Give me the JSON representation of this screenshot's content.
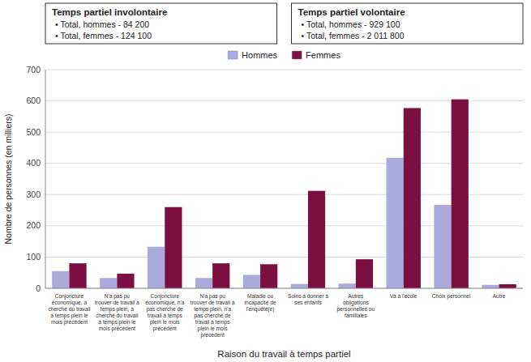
{
  "chart_data": {
    "type": "bar",
    "categories": [
      "Conjoncture\néconomique, a\ncherché du travail\nà temps plein le\nmois précédent",
      "N'a pas pu\ntrouver de travail à\ntemps plein, a\ncherché du travail\nà temps plein le\nmois précédent",
      "Conjoncture\néconomique, n'a\npas cherché de\ntravail à temps\nplein le mois\nprécédent",
      "N'a pas pu\ntrouver de travail à\ntemps plein, n'a\npas cherché de\ntravail à temps\nplein le mois\nprécédent",
      "Maladie ou\nincapacité de\nl'enquêté(e)",
      "Soins à donner à\nses enfants",
      "Autres\nobligations\npersonnelles ou\nfamiliales",
      "Va à l'école",
      "Choix personnel",
      "Autre"
    ],
    "series": [
      {
        "name": "Hommes",
        "color": "#aaaadd",
        "values": [
          55,
          33,
          133,
          33,
          43,
          14,
          15,
          418,
          267,
          11
        ]
      },
      {
        "name": "Femmes",
        "color": "#7b1040",
        "values": [
          80,
          47,
          260,
          80,
          77,
          312,
          93,
          577,
          605,
          13
        ]
      }
    ],
    "xlabel": "Raison du travail à temps partiel",
    "ylabel": "Nombre de personnes (en milliers)",
    "ylim": [
      0,
      700
    ],
    "yticks": [
      0,
      100,
      200,
      300,
      400,
      500,
      600,
      700
    ],
    "grid": true,
    "legend": "top",
    "annotations": [
      {
        "title": "Temps partiel involontaire",
        "lines": [
          "• Total, hommes - 84 200",
          "• Total, femmes - 124 100"
        ]
      },
      {
        "title": "Temps partiel volontaire",
        "lines": [
          "• Total, hommes - 929 100",
          "• Total, femmes - 2 011 800"
        ]
      }
    ]
  }
}
